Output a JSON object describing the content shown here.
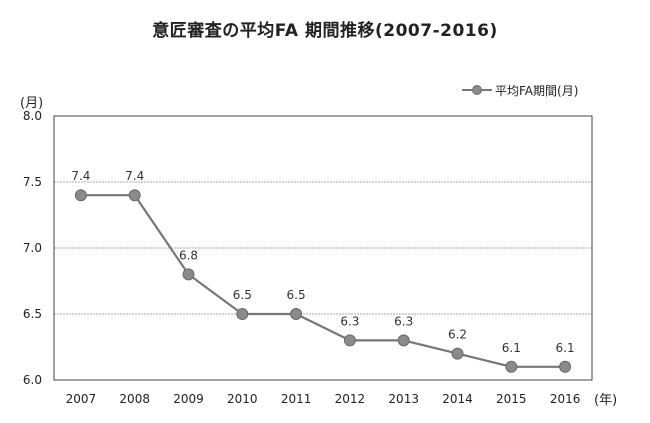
{
  "chart_data": {
    "type": "line",
    "title": "意匠審査の平均FA 期間推移(2007-2016)",
    "y_unit": "(月)",
    "x_unit": "(年)",
    "categories": [
      "2007",
      "2008",
      "2009",
      "2010",
      "2011",
      "2012",
      "2013",
      "2014",
      "2015",
      "2016"
    ],
    "series": [
      {
        "name": "平均FA期間(月)",
        "values": [
          7.4,
          7.4,
          6.8,
          6.5,
          6.5,
          6.3,
          6.3,
          6.2,
          6.1,
          6.1
        ],
        "data_labels": [
          "7.4",
          "7.4",
          "6.8",
          "6.5",
          "6.5",
          "6.3",
          "6.3",
          "6.2",
          "6.1",
          "6.1"
        ]
      }
    ],
    "ylim": [
      6.0,
      8.0
    ],
    "yticks": [
      "6.0",
      "6.5",
      "7.0",
      "7.5",
      "8.0"
    ],
    "grid": true,
    "legend_position": "top-right",
    "colors": {
      "line": "#777777",
      "marker": "#8a8a8a",
      "grid": "#a8a8a8",
      "axis": "#444444"
    }
  }
}
